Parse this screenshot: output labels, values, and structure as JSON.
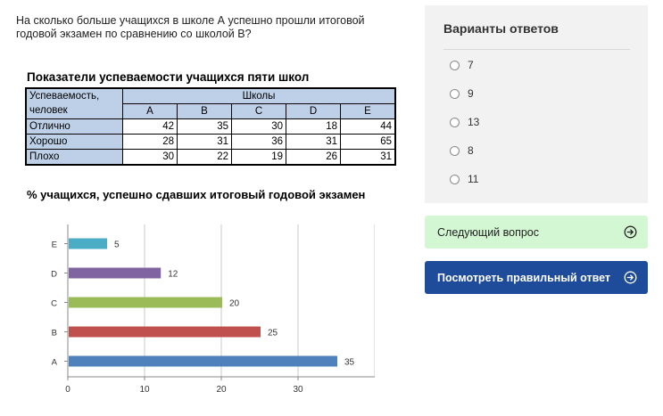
{
  "question": "На сколько больше учащихся в школе А успешно прошли итоговой годовой экзамен по сравнению со школой В?",
  "table": {
    "title": "Показатели успеваемости учащихся пяти школ",
    "corner": "Успеваемость, человек",
    "group_header": "Школы",
    "columns": [
      "A",
      "B",
      "C",
      "D",
      "E"
    ],
    "rows": [
      {
        "label": "Отлично",
        "values": [
          "42",
          "35",
          "30",
          "18",
          "44"
        ]
      },
      {
        "label": "Хорошо",
        "values": [
          "28",
          "31",
          "36",
          "31",
          "65"
        ]
      },
      {
        "label": "Плохо",
        "values": [
          "30",
          "22",
          "19",
          "26",
          "31"
        ]
      }
    ]
  },
  "chart_data": {
    "type": "bar",
    "orientation": "horizontal",
    "title": "% учащихся, успешно сдавших итоговый годовой экзамен",
    "categories": [
      "A",
      "B",
      "C",
      "D",
      "E"
    ],
    "values": [
      35,
      25,
      20,
      12,
      5
    ],
    "colors": [
      "#4f81bd",
      "#c0504d",
      "#9bbb59",
      "#8064a2",
      "#4bacc6"
    ],
    "xlim": [
      0,
      40
    ],
    "xticks": [
      0,
      10,
      20,
      30
    ],
    "grid": true,
    "xlabel": "",
    "ylabel": ""
  },
  "answers": {
    "title": "Варианты ответов",
    "options": [
      "7",
      "9",
      "13",
      "8",
      "11"
    ]
  },
  "buttons": {
    "next": "Следующий вопрос",
    "show_answer": "Посмотреть правильный ответ"
  },
  "colors": {
    "next_bg": "#d4f7d3",
    "answer_bg": "#1e4b9a",
    "panel_bg": "#f2f2f2",
    "table_header_bg": "#bdd0e8"
  }
}
